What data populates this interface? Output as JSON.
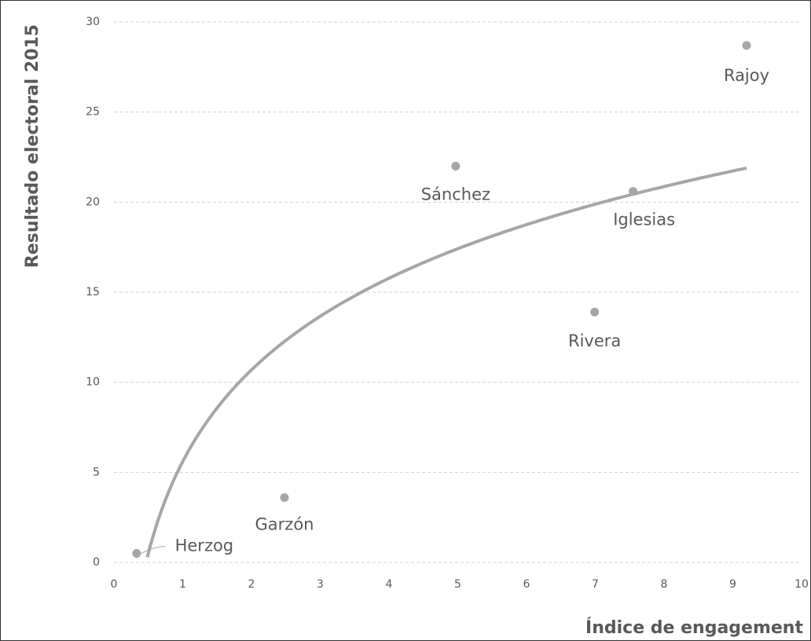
{
  "chart_data": {
    "type": "scatter",
    "x_label": "Índice de engagement",
    "y_label": "Resultado electoral 2015",
    "labels": [
      "Herzog",
      "Garzón",
      "Sánchez",
      "Rivera",
      "Iglesias",
      "Rajoy"
    ],
    "x": [
      0.33,
      2.48,
      4.97,
      6.99,
      7.55,
      9.2
    ],
    "y": [
      0.5,
      3.6,
      22.0,
      13.9,
      20.6,
      28.7
    ],
    "color": "#a6a6a6",
    "trendline": "logarithmic",
    "trendline_color": "#a6a6a6",
    "xlim": [
      0,
      10
    ],
    "xticks": [
      0,
      1,
      2,
      3,
      4,
      5,
      6,
      7,
      8,
      9,
      10
    ],
    "ylim": [
      0,
      30
    ],
    "yticks": [
      0,
      5,
      10,
      15,
      20,
      25,
      30
    ],
    "grid": true
  }
}
